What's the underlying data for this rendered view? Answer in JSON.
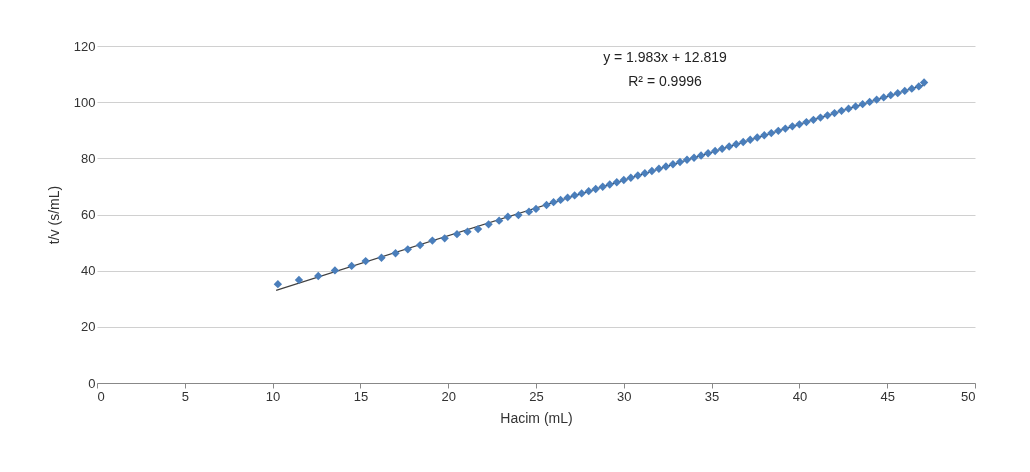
{
  "chart_data": {
    "type": "scatter",
    "xlabel": "Hacim (mL)",
    "ylabel": "t/v (s/mL)",
    "annotations": [
      "y = 1.983x + 12.819",
      "R² = 0.9996"
    ],
    "xlim": [
      0,
      50
    ],
    "xticks": [
      0,
      5,
      10,
      15,
      20,
      25,
      30,
      35,
      40,
      45,
      50
    ],
    "ylim": [
      0,
      120
    ],
    "yticks": [
      0,
      20,
      40,
      60,
      80,
      100,
      120
    ],
    "grid": "y",
    "series": [
      {
        "marker": "diamond",
        "color": "#4a7ebb",
        "x": [
          10.3,
          11.5,
          12.6,
          13.55,
          14.5,
          15.3,
          16.2,
          17.0,
          17.7,
          18.4,
          19.1,
          19.8,
          20.5,
          21.1,
          21.7,
          22.3,
          22.9,
          23.4,
          24.0,
          24.6,
          25.0,
          25.6,
          26.0,
          26.4,
          26.8,
          27.2,
          27.6,
          28.0,
          28.4,
          28.8,
          29.2,
          29.6,
          30.0,
          30.4,
          30.8,
          31.2,
          31.6,
          32.0,
          32.4,
          32.8,
          33.2,
          33.6,
          34.0,
          34.4,
          34.8,
          35.2,
          35.6,
          36.0,
          36.4,
          36.8,
          37.2,
          37.6,
          38.0,
          38.4,
          38.8,
          39.2,
          39.6,
          40.0,
          40.4,
          40.8,
          41.2,
          41.6,
          42.0,
          42.4,
          42.8,
          43.2,
          43.6,
          44.0,
          44.4,
          44.8,
          45.2,
          45.6,
          46.0,
          46.4,
          46.8,
          47.1
        ],
        "values": [
          35.2,
          36.7,
          38.1,
          40.1,
          41.7,
          43.4,
          44.6,
          46.2,
          47.6,
          49.1,
          50.7,
          51.5,
          53.0,
          53.9,
          54.8,
          56.5,
          57.8,
          59.2,
          59.8,
          61.0,
          62.0,
          63.4,
          64.4,
          65.2,
          66.0,
          66.8,
          67.5,
          68.3,
          69.1,
          69.9,
          70.7,
          71.5,
          72.3,
          73.1,
          73.9,
          74.7,
          75.5,
          76.3,
          77.1,
          77.9,
          78.7,
          79.5,
          80.2,
          81.0,
          81.8,
          82.6,
          83.4,
          84.2,
          85.0,
          85.8,
          86.6,
          87.4,
          88.2,
          89.0,
          89.8,
          90.6,
          91.4,
          92.1,
          92.9,
          93.7,
          94.5,
          95.3,
          96.1,
          96.9,
          97.7,
          98.5,
          99.3,
          100.1,
          100.9,
          101.7,
          102.5,
          103.2,
          104.0,
          104.8,
          105.6,
          107.0
        ]
      },
      {
        "type": "line",
        "color": "#404040",
        "x": [
          10.2,
          47.1
        ],
        "values": [
          33.0,
          106.2
        ]
      }
    ]
  }
}
